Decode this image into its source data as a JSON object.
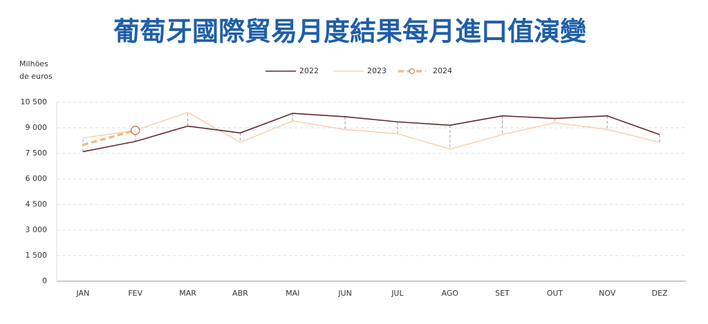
{
  "chart_data": {
    "type": "line",
    "title": "葡萄牙國際貿易月度結果每月進口值演變",
    "y_label": [
      "Milhões",
      "de euros"
    ],
    "categories": [
      "JAN",
      "FEV",
      "MAR",
      "ABR",
      "MAI",
      "JUN",
      "JUL",
      "AGO",
      "SET",
      "OUT",
      "NOV",
      "DEZ"
    ],
    "series": [
      {
        "name": "2022",
        "color": "#5c2a2e",
        "style": "solid",
        "values": [
          7600,
          8200,
          9100,
          8700,
          9850,
          9650,
          9350,
          9150,
          9700,
          9550,
          9700,
          8600
        ]
      },
      {
        "name": "2023",
        "color": "#f5d3b0",
        "style": "solid",
        "values": [
          8400,
          8850,
          9900,
          8150,
          9400,
          8900,
          8650,
          7750,
          8600,
          9300,
          8900,
          8150
        ]
      },
      {
        "name": "2024",
        "color": "#f0b88a",
        "style": "dashed",
        "values": [
          8000,
          8850,
          null,
          null,
          null,
          null,
          null,
          null,
          null,
          null,
          null,
          null
        ]
      }
    ],
    "ylim": [
      0,
      10500
    ],
    "yticks": [
      0,
      {
        "value": 1500,
        "label": "1 500"
      },
      {
        "value": 3000,
        "label": "3 000"
      },
      {
        "value": 4500,
        "label": "4 500"
      },
      {
        "value": 6000,
        "label": "6 000"
      },
      {
        "value": 7500,
        "label": "7 500"
      },
      {
        "value": 9000,
        "label": "9 000"
      },
      {
        "value": 10500,
        "label": "10 500"
      }
    ],
    "grid": true,
    "legend": "top"
  }
}
